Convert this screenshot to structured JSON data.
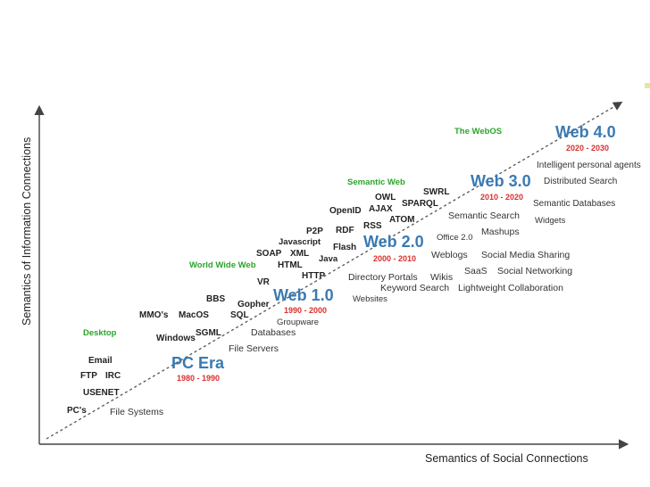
{
  "axes": {
    "x_label": "Semantics of Social Connections",
    "y_label": "Semantics of Information Connections"
  },
  "eras": [
    {
      "name": "PC Era",
      "years": "1980 - 1990"
    },
    {
      "name": "Web 1.0",
      "years": "1990 - 2000"
    },
    {
      "name": "Web 2.0",
      "years": "2000 - 2010"
    },
    {
      "name": "Web 3.0",
      "years": "2010 - 2020"
    },
    {
      "name": "Web 4.0",
      "years": "2020 - 2030"
    }
  ],
  "categories": {
    "desktop": "Desktop",
    "www": "World Wide Web",
    "semantic_web": "Semantic Web",
    "webos": "The WebOS"
  },
  "technologies": {
    "pcs": "PC's",
    "usenet": "USENET",
    "ftp": "FTP",
    "irc": "IRC",
    "email": "Email",
    "mmos": "MMO's",
    "windows": "Windows",
    "macos": "MacOS",
    "sgml": "SGML",
    "bbs": "BBS",
    "sql": "SQL",
    "gopher": "Gopher",
    "vr": "VR",
    "soap": "SOAP",
    "xml": "XML",
    "html": "HTML",
    "http": "HTTP",
    "javascript": "Javascript",
    "java": "Java",
    "p2p": "P2P",
    "rdf": "RDF",
    "flash": "Flash",
    "openid": "OpenID",
    "rss": "RSS",
    "ajax": "AJAX",
    "owl": "OWL",
    "atom": "ATOM",
    "swrl": "SWRL",
    "sparql": "SPARQL"
  },
  "applications": {
    "file_systems": "File Systems",
    "file_servers": "File Servers",
    "databases": "Databases",
    "groupware": "Groupware",
    "websites": "Websites",
    "keyword_search": "Keyword Search",
    "directory_portals": "Directory Portals",
    "wikis": "Wikis",
    "weblogs": "Weblogs",
    "office20": "Office 2.0",
    "lightweight_collaboration": "Lightweight Collaboration",
    "saas": "SaaS",
    "social_networking": "Social Networking",
    "social_media_sharing": "Social Media Sharing",
    "mashups": "Mashups",
    "semantic_search": "Semantic Search",
    "widgets": "Widgets",
    "semantic_databases": "Semantic Databases",
    "distributed_search": "Distributed Search",
    "intelligent_agents": "Intelligent personal agents"
  },
  "colors": {
    "era_blue": "#3a7ab3",
    "years_red": "#d9302c",
    "category_green": "#2aa52a",
    "axis": "#333333"
  }
}
